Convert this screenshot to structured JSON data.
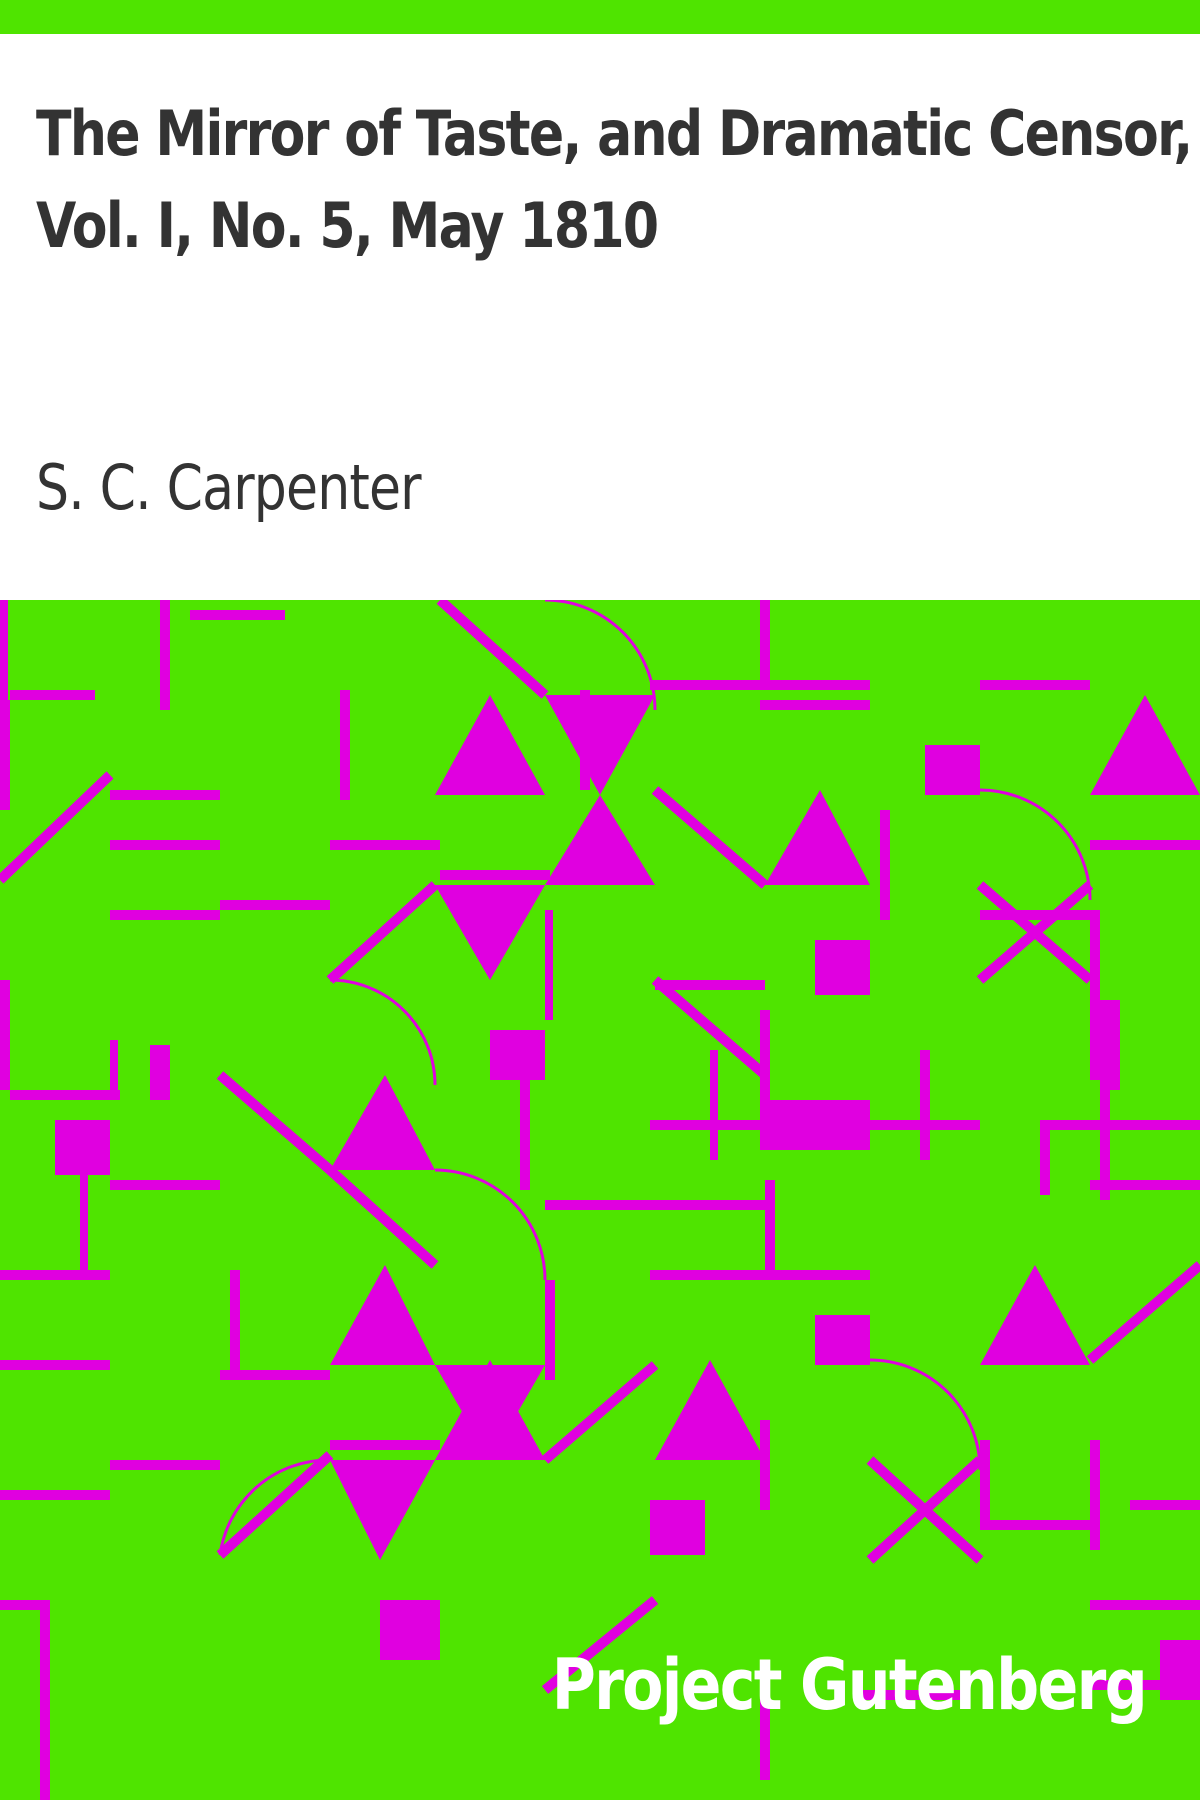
{
  "cover": {
    "title_lines": [
      "The Mirror of Taste, and Dramatic Censor,",
      "Vol. I, No. 5, May 1810"
    ],
    "author": "S. C. Carpenter",
    "publisher": "Project Gutenberg"
  },
  "colors": {
    "accent_green": "#4fe400",
    "pattern_magenta": "#e000e0",
    "text_dark": "#333333",
    "text_light": "#ffffff",
    "background": "#ffffff"
  }
}
